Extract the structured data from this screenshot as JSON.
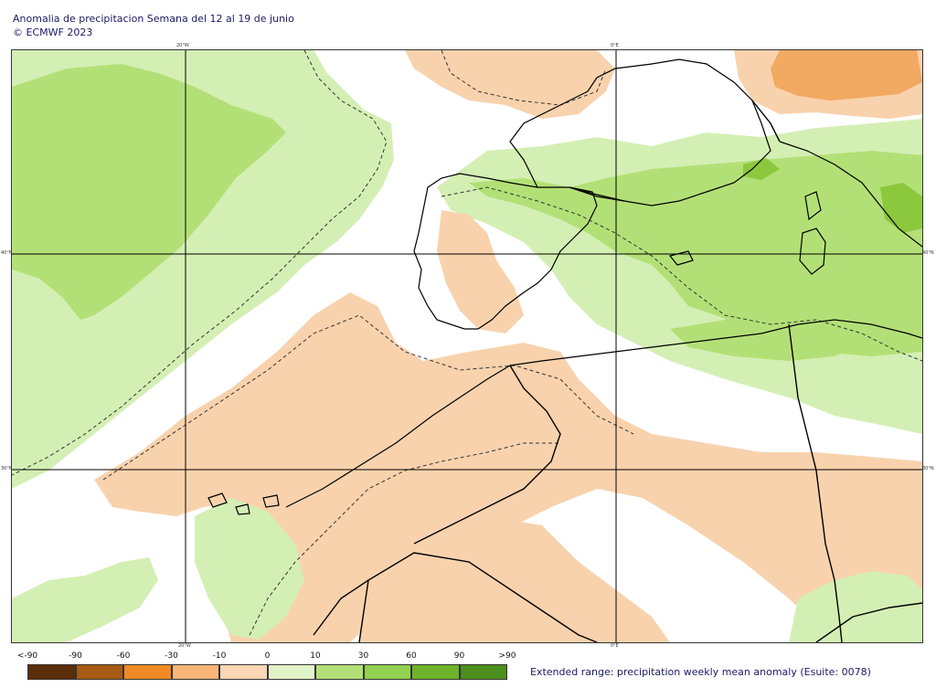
{
  "header": {
    "title": "Anomalia de precipitacion Semana del 12 al 19 de junio",
    "copyright": "© ECMWF 2023"
  },
  "map": {
    "lon_labels": {
      "top": [
        "20°W",
        "0°E"
      ],
      "bottom": [
        "20°W",
        "0°E"
      ]
    },
    "lat_labels": {
      "left": [
        "40°N",
        "30°N"
      ],
      "right": [
        "40°N",
        "30°N"
      ]
    },
    "colors": {
      "wet_light": "#d4efb4",
      "wet_medium": "#b3e076",
      "wet_strong": "#8cc83e",
      "dry_light": "#f8d2ad",
      "dry_medium": "#f2a962",
      "coast": "#000000",
      "contour": "#333333"
    }
  },
  "legend": {
    "labels": [
      "<-90",
      "-90",
      "-60",
      "-30",
      "-10",
      "0",
      "10",
      "30",
      "60",
      "90",
      ">90"
    ],
    "colors": [
      "#5a2e0a",
      "#a65a14",
      "#f08a24",
      "#f7b57a",
      "#fbd6b3",
      "#e0f3c8",
      "#b3e076",
      "#92d050",
      "#6fb32a",
      "#4c8f1c"
    ]
  },
  "caption": "Extended range: precipitation weekly mean anomaly (Esuite: 0078)"
}
